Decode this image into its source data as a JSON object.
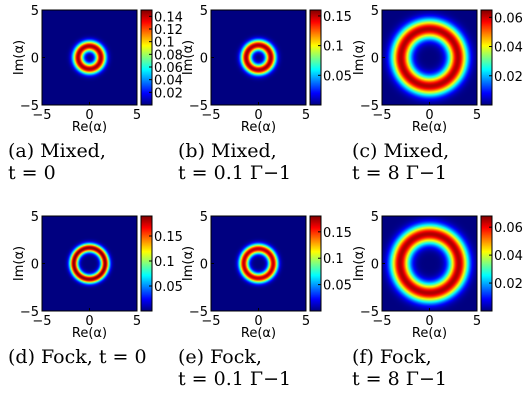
{
  "chart_data": [
    {
      "id": "a",
      "type": "heatmap",
      "state": "mixed",
      "ring_radius": 1.2,
      "ring_width": 0.55,
      "peak": 0.145,
      "colorbar_ticks": [
        "0.14",
        "0.12",
        "0.1",
        "0.08",
        "0.06",
        "0.04",
        "0.02"
      ],
      "colorbar_values": [
        0.14,
        0.12,
        0.1,
        0.08,
        0.06,
        0.04,
        0.02
      ],
      "colorbar_max": 0.15,
      "caption": [
        "(a) Mixed,",
        "t = 0"
      ]
    },
    {
      "id": "b",
      "type": "heatmap",
      "state": "mixed",
      "ring_radius": 1.3,
      "ring_width": 0.55,
      "peak": 0.155,
      "colorbar_ticks": [
        "0.15",
        "0.1",
        "0.05"
      ],
      "colorbar_values": [
        0.15,
        0.1,
        0.05
      ],
      "colorbar_max": 0.16,
      "caption": [
        "(b) Mixed,",
        "t = 0.1 Γ−1"
      ]
    },
    {
      "id": "c",
      "type": "heatmap",
      "state": "mixed",
      "ring_radius": 3.0,
      "ring_width": 1.0,
      "peak": 0.062,
      "colorbar_ticks": [
        "0.06",
        "0.04",
        "0.02"
      ],
      "colorbar_values": [
        0.06,
        0.04,
        0.02
      ],
      "colorbar_max": 0.065,
      "caption": [
        "(c) Mixed,",
        "t = 8 Γ−1"
      ]
    },
    {
      "id": "d",
      "type": "heatmap",
      "state": "fock",
      "ring_radius": 1.65,
      "ring_width": 0.45,
      "peak": 0.19,
      "colorbar_ticks": [
        "0.15",
        "0.1",
        "0.05"
      ],
      "colorbar_values": [
        0.15,
        0.1,
        0.05
      ],
      "colorbar_max": 0.19,
      "caption": [
        "(d) Fock, t = 0"
      ]
    },
    {
      "id": "e",
      "type": "heatmap",
      "state": "fock",
      "ring_radius": 1.55,
      "ring_width": 0.5,
      "peak": 0.17,
      "colorbar_ticks": [
        "0.15",
        "0.1",
        "0.05"
      ],
      "colorbar_values": [
        0.15,
        0.1,
        0.05
      ],
      "colorbar_max": 0.18,
      "caption": [
        "(e) Fock,",
        "t = 0.1 Γ−1"
      ]
    },
    {
      "id": "f",
      "type": "heatmap",
      "state": "fock",
      "ring_radius": 3.1,
      "ring_width": 1.0,
      "peak": 0.065,
      "colorbar_ticks": [
        "0.06",
        "0.04",
        "0.02"
      ],
      "colorbar_values": [
        0.06,
        0.04,
        0.02
      ],
      "colorbar_max": 0.068,
      "caption": [
        "(f) Fock,",
        "t = 8 Γ−1"
      ]
    }
  ],
  "axes": {
    "xlabel": "Re(α)",
    "ylabel": "Im(α)",
    "xlim": [
      -5,
      5
    ],
    "ylim": [
      -5,
      5
    ],
    "xticks": [
      "−5",
      "0",
      "5"
    ],
    "yticks": [
      "5",
      "0",
      "−5"
    ],
    "colormap": "jet"
  }
}
